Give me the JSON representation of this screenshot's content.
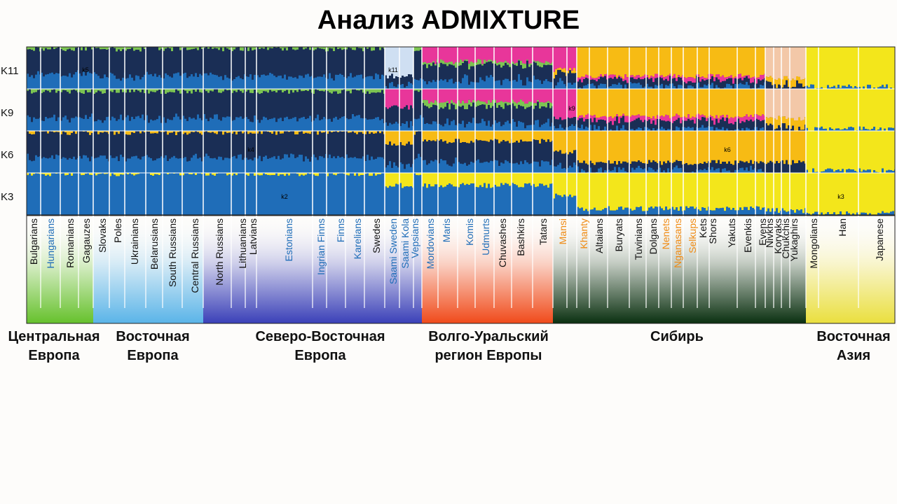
{
  "title": "Анализ ADMIXTURE",
  "colors": {
    "navy": "#1a2e55",
    "blue": "#1f6db8",
    "lightblue": "#cfdff2",
    "green": "#7cc452",
    "orange": "#c1551b",
    "magenta": "#e8369a",
    "gold": "#f7bb14",
    "yellow": "#f3e61b",
    "peach": "#f3c8a8",
    "text_black": "#111111",
    "text_blue": "#1f6db8",
    "text_orange": "#f08a12"
  },
  "chart_data": {
    "type": "stacked-bar",
    "title": "Анализ ADMIXTURE",
    "rows": [
      "K11",
      "K9",
      "K6",
      "K3"
    ],
    "inner_labels": [
      {
        "row": "K11",
        "text": "k11",
        "population": "Saami Sweden"
      },
      {
        "row": "K11",
        "text": "k5",
        "population": "Gagauzes"
      },
      {
        "row": "K9",
        "text": "k9",
        "population": "Khanty"
      },
      {
        "row": "K6",
        "text": "k4",
        "population": "Latvians"
      },
      {
        "row": "K6",
        "text": "k6",
        "population": "Yakuts"
      },
      {
        "row": "K3",
        "text": "k2",
        "population": "Estonians"
      },
      {
        "row": "K3",
        "text": "k3",
        "population": "Han"
      }
    ],
    "populations": [
      {
        "name": "Bulgarians",
        "color": "black",
        "region": "central"
      },
      {
        "name": "Hungarians",
        "color": "blue",
        "region": "central"
      },
      {
        "name": "Romanians",
        "color": "black",
        "region": "central"
      },
      {
        "name": "Gagauzes",
        "color": "black",
        "region": "central"
      },
      {
        "name": "Slovaks",
        "color": "black",
        "region": "east"
      },
      {
        "name": "Poles",
        "color": "black",
        "region": "east"
      },
      {
        "name": "Ukrainians",
        "color": "black",
        "region": "east"
      },
      {
        "name": "Belarusians",
        "color": "black",
        "region": "east"
      },
      {
        "name": "South Russians",
        "color": "black",
        "region": "east"
      },
      {
        "name": "Central Russians",
        "color": "black",
        "region": "east"
      },
      {
        "name": "North Russians",
        "color": "black",
        "region": "northeast"
      },
      {
        "name": "Lithuanians",
        "color": "black",
        "region": "northeast"
      },
      {
        "name": "Latvians",
        "color": "black",
        "region": "northeast"
      },
      {
        "name": "Estonians",
        "color": "blue",
        "region": "northeast"
      },
      {
        "name": "Ingrian Finns",
        "color": "blue",
        "region": "northeast"
      },
      {
        "name": "Finns",
        "color": "blue",
        "region": "northeast"
      },
      {
        "name": "Karelians",
        "color": "blue",
        "region": "northeast"
      },
      {
        "name": "Swedes",
        "color": "black",
        "region": "northeast"
      },
      {
        "name": "Saami Sweden",
        "color": "blue",
        "region": "northeast"
      },
      {
        "name": "Saami Kola",
        "color": "blue",
        "region": "northeast"
      },
      {
        "name": "Vepsians",
        "color": "blue",
        "region": "northeast"
      },
      {
        "name": "Mordovians",
        "color": "blue",
        "region": "volga"
      },
      {
        "name": "Maris",
        "color": "blue",
        "region": "volga"
      },
      {
        "name": "Komis",
        "color": "blue",
        "region": "volga"
      },
      {
        "name": "Udmurts",
        "color": "blue",
        "region": "volga"
      },
      {
        "name": "Chuvashes",
        "color": "black",
        "region": "volga"
      },
      {
        "name": "Bashkirs",
        "color": "black",
        "region": "volga"
      },
      {
        "name": "Tatars",
        "color": "black",
        "region": "volga"
      },
      {
        "name": "Mansi",
        "color": "orange",
        "region": "siberia"
      },
      {
        "name": "Khanty",
        "color": "orange",
        "region": "siberia"
      },
      {
        "name": "Altaians",
        "color": "black",
        "region": "siberia"
      },
      {
        "name": "Buryats",
        "color": "black",
        "region": "siberia"
      },
      {
        "name": "Tuvinians",
        "color": "black",
        "region": "siberia"
      },
      {
        "name": "Dolgans",
        "color": "black",
        "region": "siberia"
      },
      {
        "name": "Nenets",
        "color": "orange",
        "region": "siberia"
      },
      {
        "name": "Nganasans",
        "color": "orange",
        "region": "siberia"
      },
      {
        "name": "Selkups",
        "color": "orange",
        "region": "siberia"
      },
      {
        "name": "Kets",
        "color": "black",
        "region": "siberia"
      },
      {
        "name": "Shors",
        "color": "black",
        "region": "siberia"
      },
      {
        "name": "Yakuts",
        "color": "black",
        "region": "siberia"
      },
      {
        "name": "Evenkis",
        "color": "black",
        "region": "siberia"
      },
      {
        "name": "Evens",
        "color": "black",
        "region": "siberia"
      },
      {
        "name": "Nivkhs",
        "color": "black",
        "region": "siberia"
      },
      {
        "name": "Koryaks",
        "color": "black",
        "region": "siberia"
      },
      {
        "name": "Chukchis",
        "color": "black",
        "region": "siberia"
      },
      {
        "name": "Yukaghirs",
        "color": "black",
        "region": "siberia"
      },
      {
        "name": "Mongolians",
        "color": "black",
        "region": "eastasia"
      },
      {
        "name": "Han",
        "color": "black",
        "region": "eastasia"
      },
      {
        "name": "Japanese",
        "color": "black",
        "region": "eastasia"
      }
    ],
    "regions": [
      {
        "key": "central",
        "label": "Центральная\nЕвропа",
        "color": "#66c12c"
      },
      {
        "key": "east",
        "label": "Восточная\nЕвропа",
        "color": "#5ab4e8"
      },
      {
        "key": "northeast",
        "label": "Северо-Восточная\nЕвропа",
        "color": "#3a40b8"
      },
      {
        "key": "volga",
        "label": "Волго-Уральский\nрегион Европы",
        "color": "#f04a1a"
      },
      {
        "key": "siberia",
        "label": "Сибирь",
        "color": "#0a3010"
      },
      {
        "key": "eastasia",
        "label": "Восточная\nАзия",
        "color": "#eadf3e"
      }
    ]
  }
}
